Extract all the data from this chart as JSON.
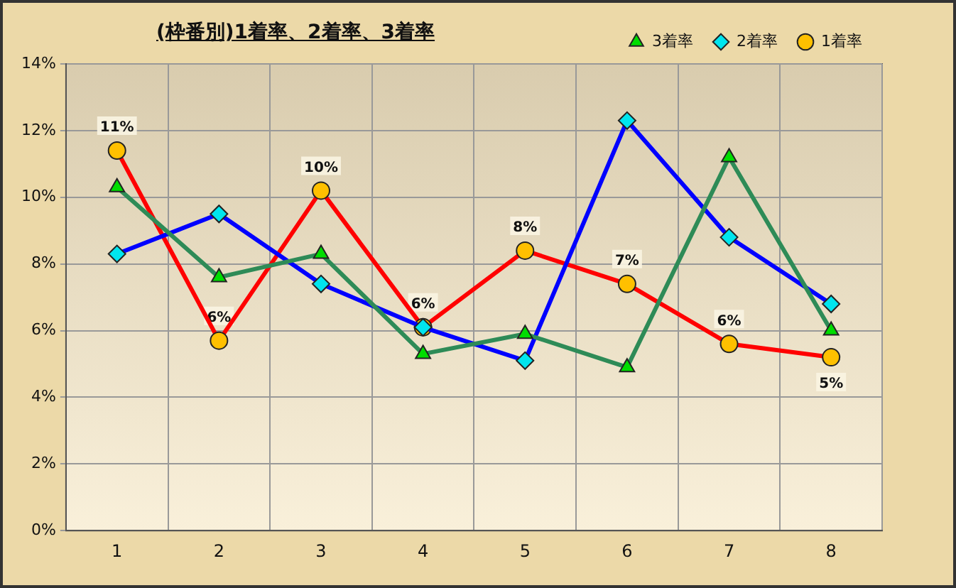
{
  "chart_data": {
    "type": "line",
    "title": "(枠番別)1着率、2着率、3着率",
    "categories": [
      "1",
      "2",
      "3",
      "4",
      "5",
      "6",
      "7",
      "8"
    ],
    "series": [
      {
        "name": "3着率",
        "color": "#2e8b57",
        "marker": "triangle",
        "colors": [
          "#00dd00",
          "#00dd00",
          "#00dd00",
          "#00dd00",
          "#00dd00",
          "#00dd00",
          "#00dd00",
          "#00dd00"
        ],
        "values": [
          10.3,
          7.6,
          8.3,
          5.3,
          5.9,
          4.9,
          11.2,
          6.0
        ]
      },
      {
        "name": "2着率",
        "color": "#0000ff",
        "marker": "diamond",
        "colors": [
          "#00e5ee",
          "#00e5ee",
          "#00e5ee",
          "#00e5ee",
          "#00e5ee",
          "#00e5ee",
          "#00e5ee",
          "#00e5ee"
        ],
        "values": [
          8.3,
          9.5,
          7.4,
          6.1,
          5.1,
          12.3,
          8.8,
          6.8
        ]
      },
      {
        "name": "1着率",
        "color": "#ff0000",
        "marker": "circle",
        "colors": [
          "#ffc000",
          "#ffc000",
          "#ffc000",
          "#ffc000",
          "#ffc000",
          "#ffc000",
          "#ffc000",
          "#ffc000"
        ],
        "values": [
          11.4,
          5.7,
          10.2,
          6.1,
          8.4,
          7.4,
          5.6,
          5.2
        ],
        "value_labels": [
          "11%",
          "6%",
          "10%",
          "6%",
          "8%",
          "7%",
          "6%",
          "5%"
        ]
      }
    ],
    "ylim": [
      0,
      14
    ],
    "yticks": [
      {
        "value": 0,
        "label": "0%"
      },
      {
        "value": 2,
        "label": "2%"
      },
      {
        "value": 4,
        "label": "4%"
      },
      {
        "value": 6,
        "label": "6%"
      },
      {
        "value": 8,
        "label": "8%"
      },
      {
        "value": 10,
        "label": "10%"
      },
      {
        "value": 12,
        "label": "12%"
      },
      {
        "value": 14,
        "label": "14%"
      }
    ],
    "grid": true,
    "legend": "top right",
    "line_style": "solid"
  }
}
